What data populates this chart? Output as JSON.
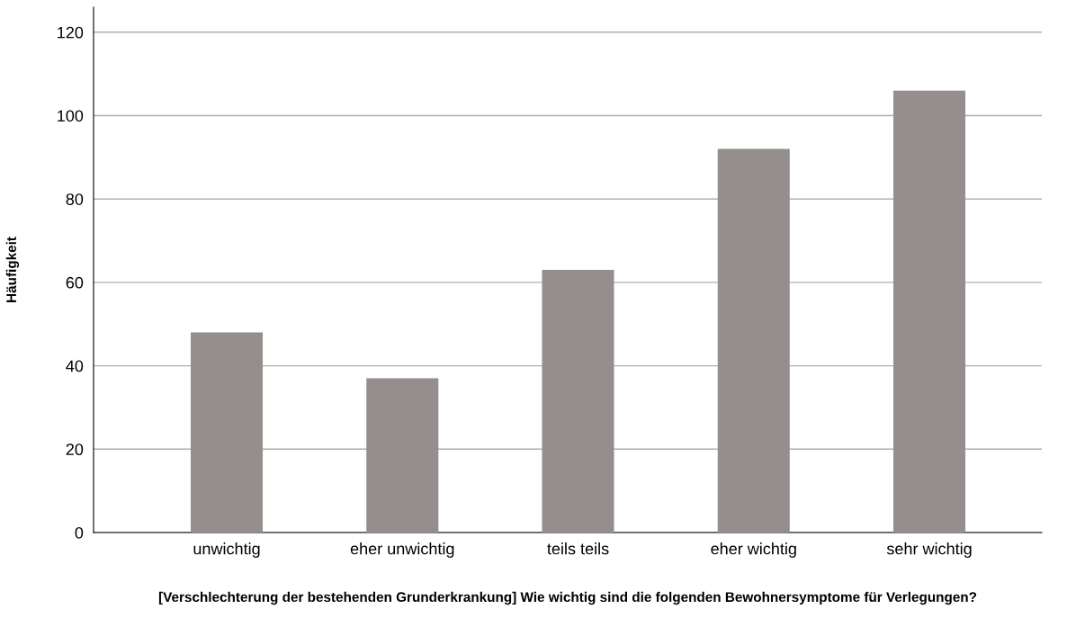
{
  "chart_data": {
    "type": "bar",
    "xlabel": "[Verschlechterung der bestehenden Grunderkrankung] Wie wichtig sind die folgenden Bewohnersymptome für Verlegungen?",
    "ylabel": "Häufigkeit",
    "categories": [
      "unwichtig",
      "eher unwichtig",
      "teils teils",
      "eher wichtig",
      "sehr wichtig"
    ],
    "values": [
      48,
      37,
      63,
      92,
      106
    ],
    "color": "#948f8d",
    "ylim": [
      0,
      126
    ],
    "yticks": [
      0,
      20,
      40,
      60,
      80,
      100,
      120
    ],
    "grid": "y"
  }
}
